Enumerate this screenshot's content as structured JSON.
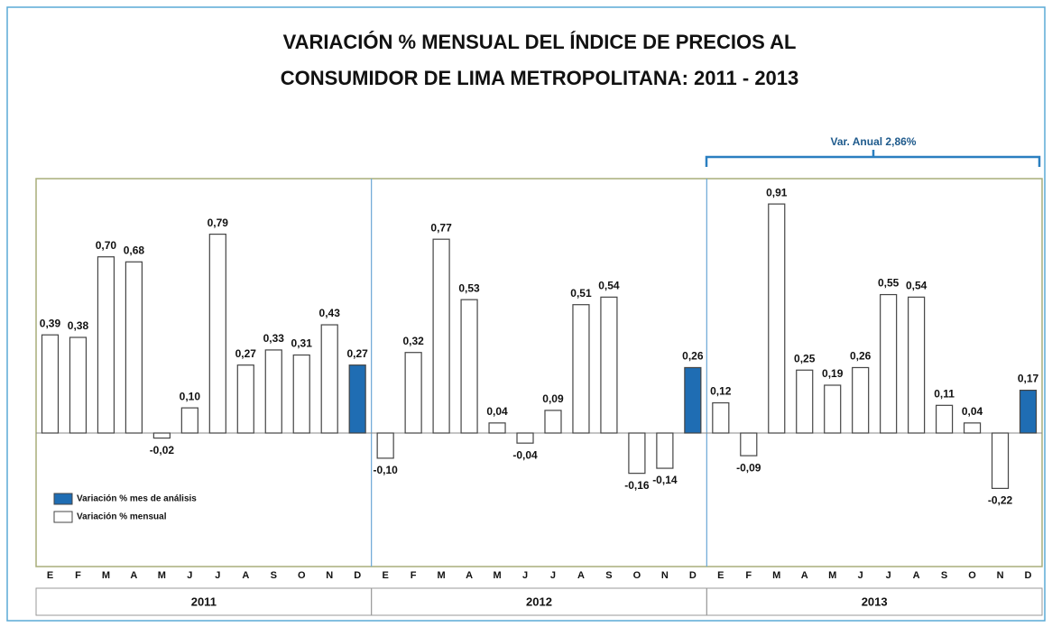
{
  "chart_data": {
    "type": "bar",
    "title": [
      "VARIACIÓN % MENSUAL DEL ÍNDICE DE PRECIOS AL",
      "CONSUMIDOR DE LIMA METROPOLITANA: 2011 - 2013"
    ],
    "annotation": "Var. Anual 2,86%",
    "groups": [
      "2011",
      "2012",
      "2013"
    ],
    "categories": [
      "E",
      "F",
      "M",
      "A",
      "M",
      "J",
      "J",
      "A",
      "S",
      "O",
      "N",
      "D",
      "E",
      "F",
      "M",
      "A",
      "M",
      "J",
      "J",
      "A",
      "S",
      "O",
      "N",
      "D",
      "E",
      "F",
      "M",
      "A",
      "M",
      "J",
      "J",
      "A",
      "S",
      "O",
      "N",
      "D"
    ],
    "series": [
      {
        "name": "Variación % mes de análisis",
        "color": "#1f6db3",
        "values": [
          null,
          null,
          null,
          null,
          null,
          null,
          null,
          null,
          null,
          null,
          null,
          0.27,
          null,
          null,
          null,
          null,
          null,
          null,
          null,
          null,
          null,
          null,
          null,
          0.26,
          null,
          null,
          null,
          null,
          null,
          null,
          null,
          null,
          null,
          null,
          null,
          0.17
        ],
        "value_labels": [
          null,
          null,
          null,
          null,
          null,
          null,
          null,
          null,
          null,
          null,
          null,
          "0,27",
          null,
          null,
          null,
          null,
          null,
          null,
          null,
          null,
          null,
          null,
          null,
          "0,26",
          null,
          null,
          null,
          null,
          null,
          null,
          null,
          null,
          null,
          null,
          null,
          "0,17"
        ]
      },
      {
        "name": "Variación % mensual",
        "color": "#ffffff",
        "values": [
          0.39,
          0.38,
          0.7,
          0.68,
          -0.02,
          0.1,
          0.79,
          0.27,
          0.33,
          0.31,
          0.43,
          null,
          -0.1,
          0.32,
          0.77,
          0.53,
          0.04,
          -0.04,
          0.09,
          0.51,
          0.54,
          -0.16,
          -0.14,
          null,
          0.12,
          -0.09,
          0.91,
          0.25,
          0.19,
          0.26,
          0.55,
          0.54,
          0.11,
          0.04,
          -0.22,
          null
        ],
        "value_labels": [
          "0,39",
          "0,38",
          "0,70",
          "0,68",
          "-0,02",
          "0,10",
          "0,79",
          "0,27",
          "0,33",
          "0,31",
          "0,43",
          null,
          "-0,10",
          "0,32",
          "0,77",
          "0,53",
          "0,04",
          "-0,04",
          "0,09",
          "0,51",
          "0,54",
          "-0,16",
          "-0,14",
          null,
          "0,12",
          "-0,09",
          "0,91",
          "0,25",
          "0,19",
          "0,26",
          "0,55",
          "0,54",
          "0,11",
          "0,04",
          "-0,22",
          null
        ]
      }
    ]
  }
}
